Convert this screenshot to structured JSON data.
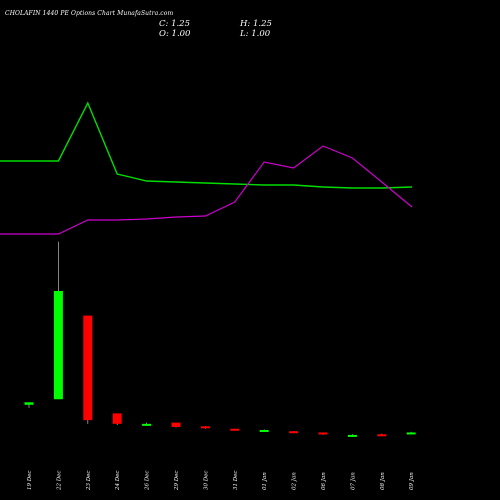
{
  "header": {
    "title": "CHOLAFIN 1440 PE Options Chart MunafaSutra.com",
    "close": "C: 1.25",
    "open": "O: 1.00",
    "high": "H: 1.25",
    "low": "L: 1.00"
  },
  "colors": {
    "background": "#000000",
    "up": "#00ff00",
    "down": "#ff0000",
    "line_green": "#00dd00",
    "line_purple": "#cc00cc",
    "text": "#ffffff"
  },
  "chart_data": {
    "type": "candlestick",
    "title": "CHOLAFIN 1440 PE Options Chart MunafaSutra.com",
    "categories": [
      "19 Dec",
      "22 Dec",
      "23 Dec",
      "24 Dec",
      "26 Dec",
      "29 Dec",
      "30 Dec",
      "31 Dec",
      "01 Jan",
      "02 Jan",
      "06 Jan",
      "07 Jan",
      "08 Jan",
      "09 Jan"
    ],
    "candles": [
      {
        "date": "19 Dec",
        "open": 7.5,
        "high": 9.0,
        "low": 5.0,
        "close": 9.5,
        "dir": "up"
      },
      {
        "date": "22 Dec",
        "open": 12.0,
        "high": 140.0,
        "low": 12.0,
        "close": 100.0,
        "dir": "up"
      },
      {
        "date": "23 Dec",
        "open": 80.0,
        "high": 80.0,
        "low": -8.0,
        "close": -5.0,
        "dir": "down"
      },
      {
        "date": "24 Dec",
        "open": 0.5,
        "high": 0.5,
        "low": -9.0,
        "close": -8.0,
        "dir": "down"
      },
      {
        "date": "26 Dec",
        "open": -8.0,
        "high": -7.0,
        "low": -9.5,
        "close": -9.0,
        "dir": "up"
      },
      {
        "date": "29 Dec",
        "open": -7.0,
        "high": -7.0,
        "low": -11.0,
        "close": -10.5,
        "dir": "down"
      },
      {
        "date": "30 Dec",
        "open": -10.0,
        "high": -10.0,
        "low": -12.0,
        "close": -11.5,
        "dir": "down"
      },
      {
        "date": "31 Dec",
        "open": -12.0,
        "high": -12.0,
        "low": -13.5,
        "close": -13.0,
        "dir": "down"
      },
      {
        "date": "01 Jan",
        "open": -13.0,
        "high": -12.5,
        "low": -14.0,
        "close": -13.5,
        "dir": "up"
      },
      {
        "date": "02 Jan",
        "open": -14.0,
        "high": -14.0,
        "low": -15.5,
        "close": -15.0,
        "dir": "down"
      },
      {
        "date": "06 Jan",
        "open": -15.0,
        "high": -15.0,
        "low": -17.0,
        "close": -16.5,
        "dir": "down"
      },
      {
        "date": "07 Jan",
        "open": -17.0,
        "high": -16.5,
        "low": -17.5,
        "close": -17.2,
        "dir": "up"
      },
      {
        "date": "08 Jan",
        "open": -16.5,
        "high": -16.0,
        "low": -17.0,
        "close": -16.8,
        "dir": "down"
      },
      {
        "date": "09 Jan",
        "open": -16.5,
        "high": -14.5,
        "low": -16.5,
        "close": -15.0,
        "dir": "up"
      }
    ],
    "green_line": [
      161,
      161,
      103,
      174,
      181,
      182,
      183,
      184,
      185,
      185,
      187,
      188,
      188,
      187
    ],
    "purple_line": [
      234,
      234,
      220,
      220,
      219,
      217,
      216,
      202,
      162,
      168,
      146,
      158,
      182,
      207
    ],
    "candle_scale": {
      "px_per_unit": 1.23,
      "zero_y": 414
    },
    "grid": false,
    "legend": "none"
  }
}
